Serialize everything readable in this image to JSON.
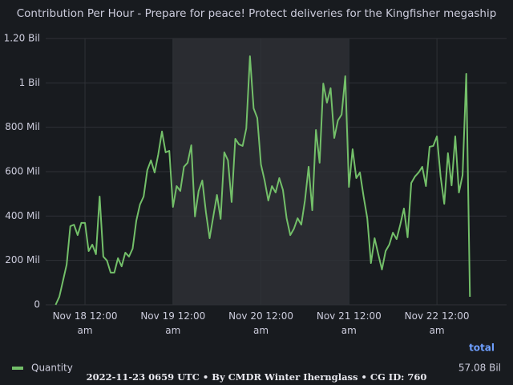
{
  "chart_data": {
    "type": "line",
    "title": "Contribution Per Hour - Prepare for peace! Protect deliveries for the Kingfisher megaship",
    "x": [
      "Nov 17 16:00",
      "Nov 17 17:00",
      "Nov 17 18:00",
      "Nov 17 19:00",
      "Nov 17 20:00",
      "Nov 17 21:00",
      "Nov 17 22:00",
      "Nov 17 23:00",
      "Nov 18 00:00",
      "Nov 18 01:00",
      "Nov 18 02:00",
      "Nov 18 03:00",
      "Nov 18 04:00",
      "Nov 18 05:00",
      "Nov 18 06:00",
      "Nov 18 07:00",
      "Nov 18 08:00",
      "Nov 18 09:00",
      "Nov 18 10:00",
      "Nov 18 11:00",
      "Nov 18 12:00",
      "Nov 18 13:00",
      "Nov 18 14:00",
      "Nov 18 15:00",
      "Nov 18 16:00",
      "Nov 18 17:00",
      "Nov 18 18:00",
      "Nov 18 19:00",
      "Nov 18 20:00",
      "Nov 18 21:00",
      "Nov 18 22:00",
      "Nov 18 23:00",
      "Nov 19 00:00",
      "Nov 19 01:00",
      "Nov 19 02:00",
      "Nov 19 03:00",
      "Nov 19 04:00",
      "Nov 19 05:00",
      "Nov 19 06:00",
      "Nov 19 07:00",
      "Nov 19 08:00",
      "Nov 19 09:00",
      "Nov 19 10:00",
      "Nov 19 11:00",
      "Nov 19 12:00",
      "Nov 19 13:00",
      "Nov 19 14:00",
      "Nov 19 15:00",
      "Nov 19 16:00",
      "Nov 19 17:00",
      "Nov 19 18:00",
      "Nov 19 19:00",
      "Nov 19 20:00",
      "Nov 19 21:00",
      "Nov 19 22:00",
      "Nov 19 23:00",
      "Nov 20 00:00",
      "Nov 20 01:00",
      "Nov 20 02:00",
      "Nov 20 03:00",
      "Nov 20 04:00",
      "Nov 20 05:00",
      "Nov 20 06:00",
      "Nov 20 07:00",
      "Nov 20 08:00",
      "Nov 20 09:00",
      "Nov 20 10:00",
      "Nov 20 11:00",
      "Nov 20 12:00",
      "Nov 20 13:00",
      "Nov 20 14:00",
      "Nov 20 15:00",
      "Nov 20 16:00",
      "Nov 20 17:00",
      "Nov 20 18:00",
      "Nov 20 19:00",
      "Nov 20 20:00",
      "Nov 20 21:00",
      "Nov 20 22:00",
      "Nov 20 23:00",
      "Nov 21 00:00",
      "Nov 21 01:00",
      "Nov 21 02:00",
      "Nov 21 03:00",
      "Nov 21 04:00",
      "Nov 21 05:00",
      "Nov 21 06:00",
      "Nov 21 07:00",
      "Nov 21 08:00",
      "Nov 21 09:00",
      "Nov 21 10:00",
      "Nov 21 11:00",
      "Nov 21 12:00",
      "Nov 21 13:00",
      "Nov 21 14:00",
      "Nov 21 15:00",
      "Nov 21 16:00",
      "Nov 21 17:00",
      "Nov 21 18:00",
      "Nov 21 19:00",
      "Nov 21 20:00",
      "Nov 21 21:00",
      "Nov 21 22:00",
      "Nov 21 23:00",
      "Nov 22 00:00",
      "Nov 22 01:00",
      "Nov 22 02:00",
      "Nov 22 03:00",
      "Nov 22 04:00",
      "Nov 22 05:00",
      "Nov 22 06:00",
      "Nov 22 07:00",
      "Nov 22 08:00",
      "Nov 22 09:00"
    ],
    "series": [
      {
        "name": "Quantity",
        "color": "#73bf69",
        "total": "57.08 Bil",
        "values": [
          0,
          36000000,
          108000000,
          181000000,
          354000000,
          361000000,
          314000000,
          369000000,
          369000000,
          242000000,
          271000000,
          228000000,
          488000000,
          217000000,
          199000000,
          145000000,
          145000000,
          210000000,
          173000000,
          235000000,
          217000000,
          253000000,
          379000000,
          452000000,
          488000000,
          607000000,
          651000000,
          596000000,
          679000000,
          781000000,
          687000000,
          694000000,
          441000000,
          535000000,
          513000000,
          622000000,
          640000000,
          719000000,
          398000000,
          513000000,
          560000000,
          416000000,
          300000000,
          398000000,
          495000000,
          387000000,
          687000000,
          651000000,
          463000000,
          748000000,
          723000000,
          716000000,
          795000000,
          1120000000,
          885000000,
          842000000,
          632000000,
          560000000,
          470000000,
          535000000,
          506000000,
          571000000,
          517000000,
          390000000,
          314000000,
          343000000,
          390000000,
          361000000,
          470000000,
          622000000,
          426000000,
          788000000,
          640000000,
          997000000,
          911000000,
          976000000,
          752000000,
          831000000,
          857000000,
          1030000000,
          531000000,
          701000000,
          571000000,
          596000000,
          488000000,
          390000000,
          188000000,
          300000000,
          228000000,
          159000000,
          242000000,
          271000000,
          325000000,
          296000000,
          361000000,
          434000000,
          304000000,
          549000000,
          578000000,
          596000000,
          622000000,
          535000000,
          712000000,
          716000000,
          759000000,
          578000000,
          455000000,
          683000000,
          538000000,
          759000000,
          506000000,
          585000000,
          1041000000,
          36000000
        ]
      }
    ],
    "xlim": [
      "Nov 17 13:17",
      "Nov 22 19:00"
    ],
    "xticks": [
      {
        "value": "Nov 18 00:00",
        "label": "Nov 18 12:00 am"
      },
      {
        "value": "Nov 19 00:00",
        "label": "Nov 19 12:00 am"
      },
      {
        "value": "Nov 20 00:00",
        "label": "Nov 20 12:00 am"
      },
      {
        "value": "Nov 21 00:00",
        "label": "Nov 21 12:00 am"
      },
      {
        "value": "Nov 22 00:00",
        "label": "Nov 22 12:00 am"
      }
    ],
    "ylim": [
      0,
      1200000000
    ],
    "yticks": [
      0,
      {
        "value": 200000000,
        "label": "200 Mil"
      },
      {
        "value": 400000000,
        "label": "400 Mil"
      },
      {
        "value": 600000000,
        "label": "600 Mil"
      },
      {
        "value": 800000000,
        "label": "800 Mil"
      },
      {
        "value": 1000000000,
        "label": "1 Bil"
      },
      {
        "value": 1200000000,
        "label": "1.20 Bil"
      }
    ],
    "shaded_range": [
      "Nov 19 00:00",
      "Nov 21 00:00"
    ],
    "grid": true,
    "legend_header": "total",
    "footer": "2022-11-23 0659 UTC • By CMDR Winter Ihernglass • CG ID: 760"
  }
}
